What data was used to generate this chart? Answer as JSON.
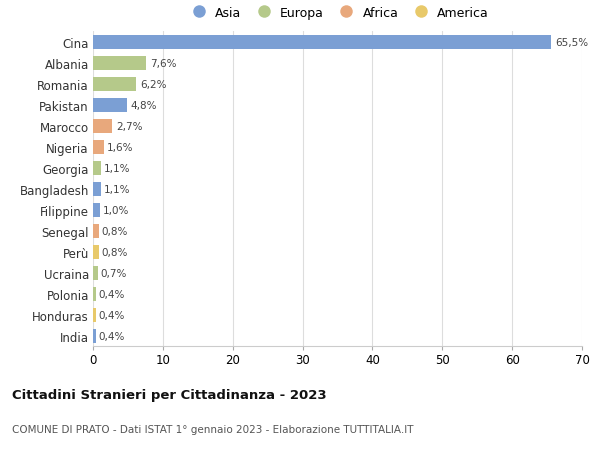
{
  "countries": [
    "Cina",
    "Albania",
    "Romania",
    "Pakistan",
    "Marocco",
    "Nigeria",
    "Georgia",
    "Bangladesh",
    "Filippine",
    "Senegal",
    "Perù",
    "Ucraina",
    "Polonia",
    "Honduras",
    "India"
  ],
  "values": [
    65.5,
    7.6,
    6.2,
    4.8,
    2.7,
    1.6,
    1.1,
    1.1,
    1.0,
    0.8,
    0.8,
    0.7,
    0.4,
    0.4,
    0.4
  ],
  "labels": [
    "65,5%",
    "7,6%",
    "6,2%",
    "4,8%",
    "2,7%",
    "1,6%",
    "1,1%",
    "1,1%",
    "1,0%",
    "0,8%",
    "0,8%",
    "0,7%",
    "0,4%",
    "0,4%",
    "0,4%"
  ],
  "continents": [
    "Asia",
    "Europa",
    "Europa",
    "Asia",
    "Africa",
    "Africa",
    "Europa",
    "Asia",
    "Asia",
    "Africa",
    "America",
    "Europa",
    "Europa",
    "America",
    "Asia"
  ],
  "colors": {
    "Asia": "#7b9fd4",
    "Europa": "#b5c98a",
    "Africa": "#e8a87c",
    "America": "#e8c96a"
  },
  "legend_order": [
    "Asia",
    "Europa",
    "Africa",
    "America"
  ],
  "title": "Cittadini Stranieri per Cittadinanza - 2023",
  "subtitle": "COMUNE DI PRATO - Dati ISTAT 1° gennaio 2023 - Elaborazione TUTTITALIA.IT",
  "xlim": [
    0,
    70
  ],
  "xticks": [
    0,
    10,
    20,
    30,
    40,
    50,
    60,
    70
  ],
  "plot_background": "#ffffff"
}
